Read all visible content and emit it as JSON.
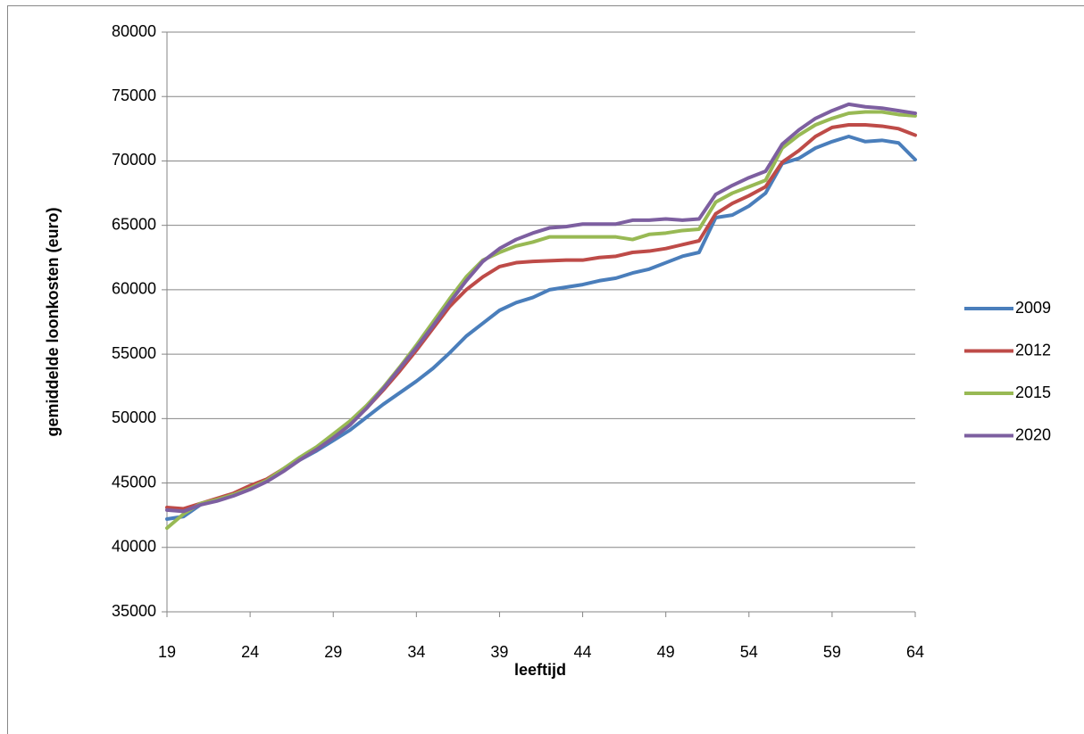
{
  "chart_data": {
    "type": "line",
    "x_label": "leeftijd",
    "y_label": "gemiddelde loonkosten (euro)",
    "x": [
      19,
      20,
      21,
      22,
      23,
      24,
      25,
      26,
      27,
      28,
      29,
      30,
      31,
      32,
      33,
      34,
      35,
      36,
      37,
      38,
      39,
      40,
      41,
      42,
      43,
      44,
      45,
      46,
      47,
      48,
      49,
      50,
      51,
      52,
      53,
      54,
      55,
      56,
      57,
      58,
      59,
      60,
      61,
      62,
      63,
      64
    ],
    "series": [
      {
        "name": "2009",
        "color": "#4a7ebb",
        "values": [
          42200,
          42400,
          43300,
          43700,
          44100,
          44600,
          45200,
          46000,
          46800,
          47500,
          48300,
          49100,
          50100,
          51100,
          52000,
          52900,
          53900,
          55100,
          56400,
          57400,
          58400,
          59000,
          59400,
          60000,
          60200,
          60400,
          60700,
          60900,
          61300,
          61600,
          62100,
          62600,
          62900,
          65600,
          65800,
          66500,
          67500,
          69800,
          70200,
          71000,
          71500,
          71900,
          71500,
          71600,
          71400,
          70100
        ]
      },
      {
        "name": "2012",
        "color": "#be4b48",
        "values": [
          43100,
          43000,
          43400,
          43800,
          44200,
          44800,
          45300,
          46100,
          46900,
          47700,
          48600,
          49600,
          50800,
          52200,
          53700,
          55300,
          57000,
          58700,
          60000,
          61000,
          61800,
          62100,
          62200,
          62250,
          62300,
          62300,
          62500,
          62600,
          62900,
          63000,
          63200,
          63500,
          63800,
          65900,
          66700,
          67300,
          68000,
          69900,
          70800,
          71900,
          72600,
          72800,
          72800,
          72700,
          72500,
          72000
        ]
      },
      {
        "name": "2015",
        "color": "#98b954",
        "values": [
          41500,
          42600,
          43400,
          43700,
          44100,
          44600,
          45200,
          46100,
          47000,
          47800,
          48800,
          49800,
          51000,
          52400,
          54000,
          55700,
          57500,
          59300,
          61000,
          62300,
          62900,
          63400,
          63700,
          64100,
          64100,
          64100,
          64100,
          64100,
          63900,
          64300,
          64400,
          64600,
          64700,
          66800,
          67500,
          68000,
          68500,
          71000,
          72000,
          72800,
          73300,
          73700,
          73800,
          73800,
          73600,
          73500
        ]
      },
      {
        "name": "2020",
        "color": "#7d5fa0",
        "values": [
          42900,
          42800,
          43300,
          43600,
          44000,
          44500,
          45100,
          45900,
          46800,
          47600,
          48500,
          49500,
          50800,
          52300,
          53900,
          55500,
          57200,
          59000,
          60700,
          62200,
          63200,
          63900,
          64400,
          64800,
          64900,
          65100,
          65100,
          65100,
          65400,
          65400,
          65500,
          65400,
          65500,
          67400,
          68100,
          68700,
          69200,
          71300,
          72400,
          73300,
          73900,
          74400,
          74200,
          74100,
          73900,
          73700
        ]
      }
    ],
    "xlim": [
      19,
      64
    ],
    "xticks": [
      19,
      24,
      29,
      34,
      39,
      44,
      49,
      54,
      59,
      64
    ],
    "ylim": [
      35000,
      80000
    ],
    "yticks": [
      35000,
      40000,
      45000,
      50000,
      55000,
      60000,
      65000,
      70000,
      75000,
      80000
    ],
    "grid": true,
    "legend": "right"
  }
}
